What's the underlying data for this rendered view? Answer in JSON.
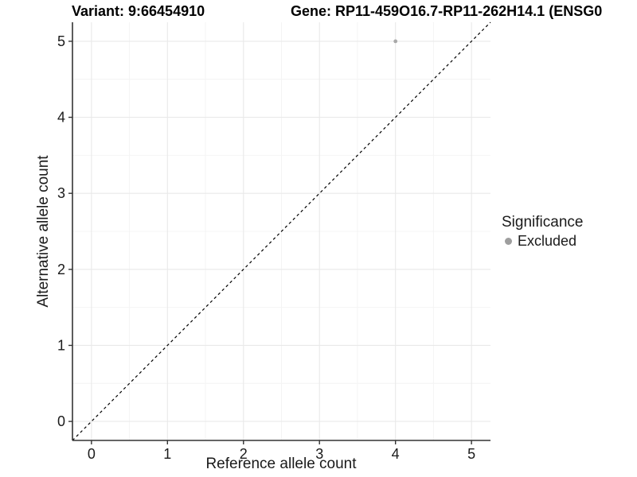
{
  "figure": {
    "title_left": "Variant: 9:66454910",
    "title_right": "Gene: RP11-459O16.7-RP11-262H14.1 (ENSG0"
  },
  "chart_data": {
    "type": "scatter",
    "title_left": "Variant: 9:66454910",
    "title_right": "Gene: RP11-459O16.7-RP11-262H14.1 (ENSG0",
    "xlabel": "Reference allele count",
    "ylabel": "Alternative allele count",
    "xlim": [
      -0.25,
      5.25
    ],
    "ylim": [
      -0.25,
      5.25
    ],
    "xticks": [
      0,
      1,
      2,
      3,
      4,
      5
    ],
    "yticks": [
      0,
      1,
      2,
      3,
      4,
      5
    ],
    "minor_ticks_x": [
      0.5,
      1.5,
      2.5,
      3.5,
      4.5
    ],
    "minor_ticks_y": [
      0.5,
      1.5,
      2.5,
      3.5,
      4.5
    ],
    "grid": "on",
    "series": [
      {
        "name": "Excluded",
        "points": [
          {
            "x": 4,
            "y": 5
          }
        ],
        "color": "#a9a9a9"
      }
    ],
    "identity_line": {
      "style": "dashed",
      "from": [
        -0.25,
        -0.25
      ],
      "to": [
        5.25,
        5.25
      ],
      "color": "#000000"
    },
    "legend": {
      "title": "Significance",
      "position": "right",
      "entries": [
        {
          "label": "Excluded",
          "color": "#9e9e9e",
          "marker": "circle"
        }
      ]
    }
  },
  "colors": {
    "background": "#ffffff",
    "grid_major": "#e9e9e9",
    "grid_minor": "#f4f4f4",
    "axis_line": "#333333",
    "tick_mark": "#333333",
    "tick_label": "#1a1a1a",
    "title": "#000000",
    "point": "#a9a9a9",
    "legend_point": "#9e9e9e",
    "dashed_line": "#000000"
  }
}
